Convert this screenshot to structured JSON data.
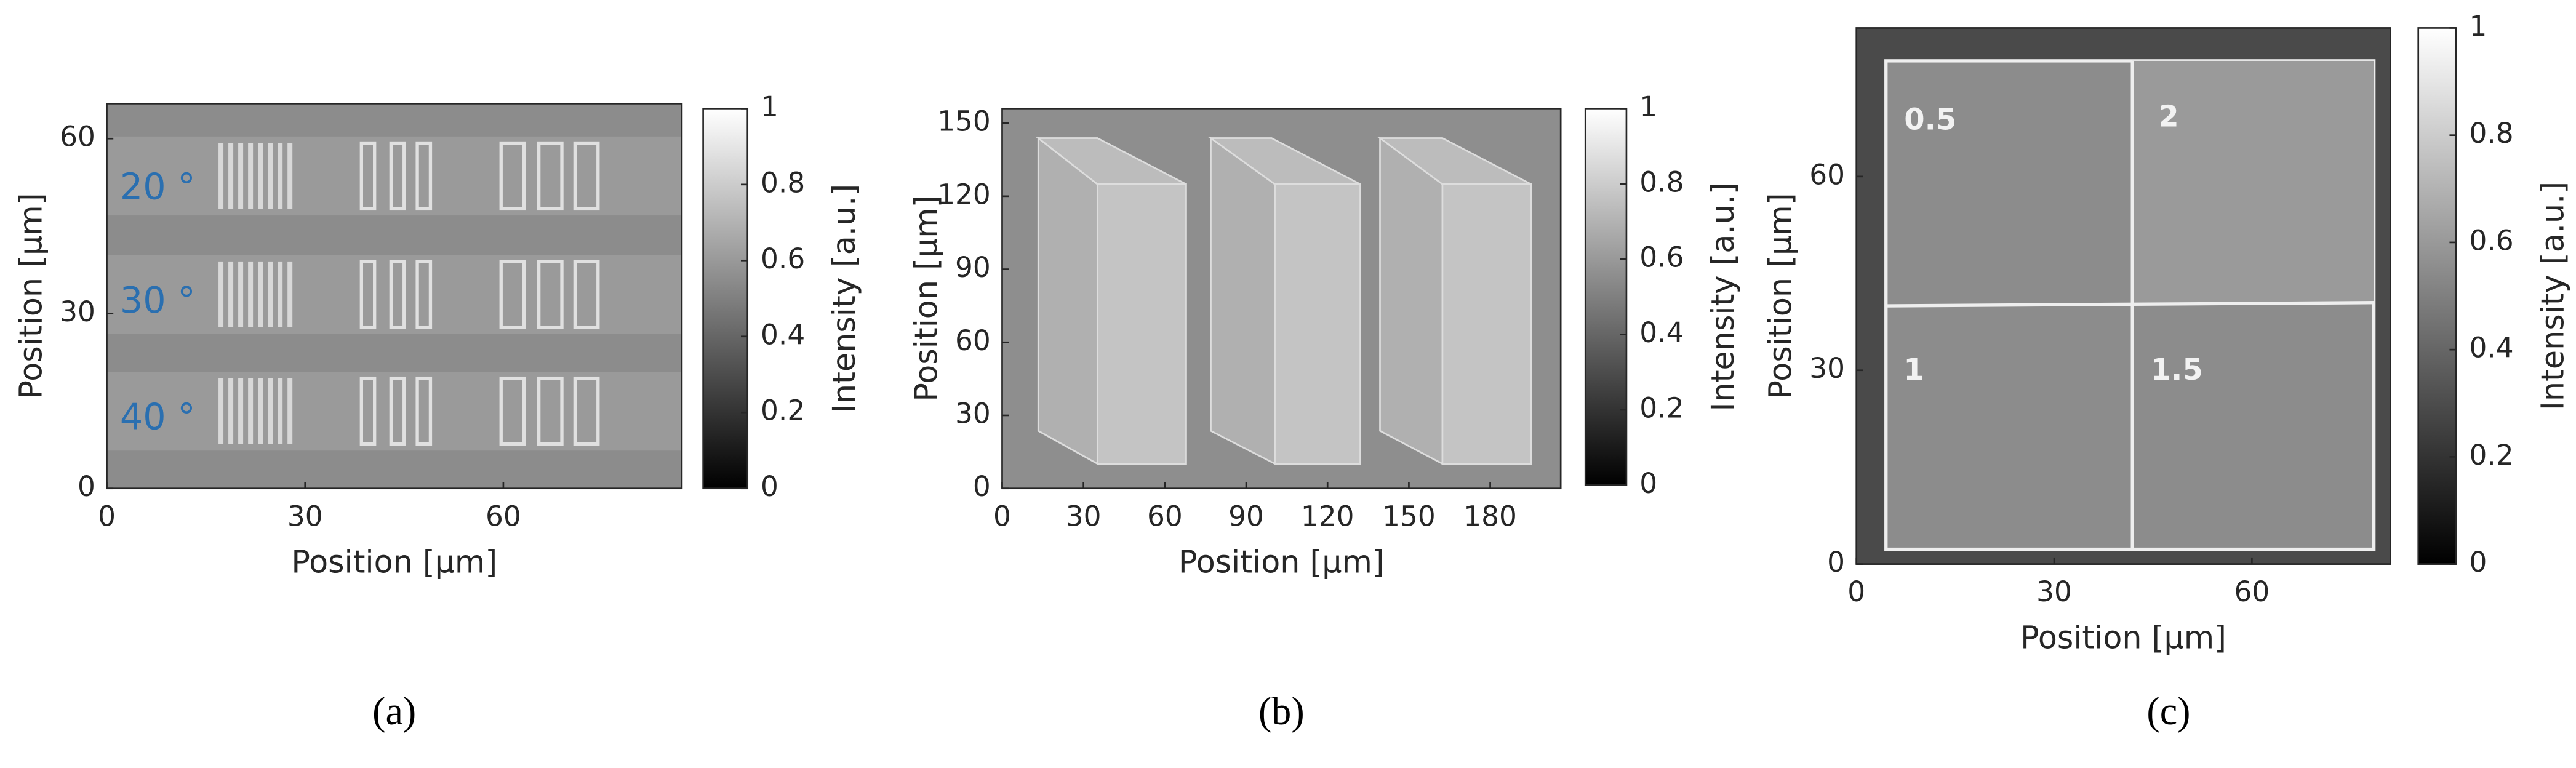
{
  "chart_data": [
    {
      "type": "image",
      "panel_label": "(a)",
      "xlabel": "Position [μm]",
      "ylabel": "Position [μm]",
      "xlim": [
        0,
        87
      ],
      "ylim": [
        0,
        66
      ],
      "xticks": [
        0,
        30,
        60
      ],
      "yticks": [
        0,
        30,
        60
      ],
      "colorbar": {
        "label": "Intensity [a.u.]",
        "lim": [
          0,
          1
        ],
        "ticks": [
          0,
          0.2,
          0.4,
          0.6,
          0.8,
          1
        ]
      },
      "annotations": [
        "20 °",
        "30 °",
        "40 °"
      ],
      "annotation_color": "#2a6fb0"
    },
    {
      "type": "image",
      "panel_label": "(b)",
      "xlabel": "Position [μm]",
      "ylabel": "Position [μm]",
      "xlim": [
        0,
        206
      ],
      "ylim": [
        0,
        156
      ],
      "xticks": [
        0,
        30,
        60,
        90,
        120,
        150,
        180
      ],
      "yticks": [
        0,
        30,
        60,
        90,
        120,
        150
      ],
      "colorbar": {
        "label": "Intensity [a.u.]",
        "lim": [
          0,
          1
        ],
        "ticks": [
          0,
          0.2,
          0.4,
          0.6,
          0.8,
          1
        ]
      }
    },
    {
      "type": "image",
      "panel_label": "(c)",
      "xlabel": "Position [μm]",
      "ylabel": "Position [μm]",
      "xlim": [
        0,
        81
      ],
      "ylim": [
        0,
        83
      ],
      "xticks": [
        0,
        30,
        60
      ],
      "yticks": [
        0,
        30,
        60
      ],
      "colorbar": {
        "label": "Intensity [a.u.]",
        "lim": [
          0,
          1
        ],
        "ticks": [
          0,
          0.2,
          0.4,
          0.6,
          0.8,
          1
        ]
      },
      "annotations": [
        "0.5",
        "2",
        "1",
        "1.5"
      ],
      "annotation_color": "#f2f2f2"
    }
  ]
}
